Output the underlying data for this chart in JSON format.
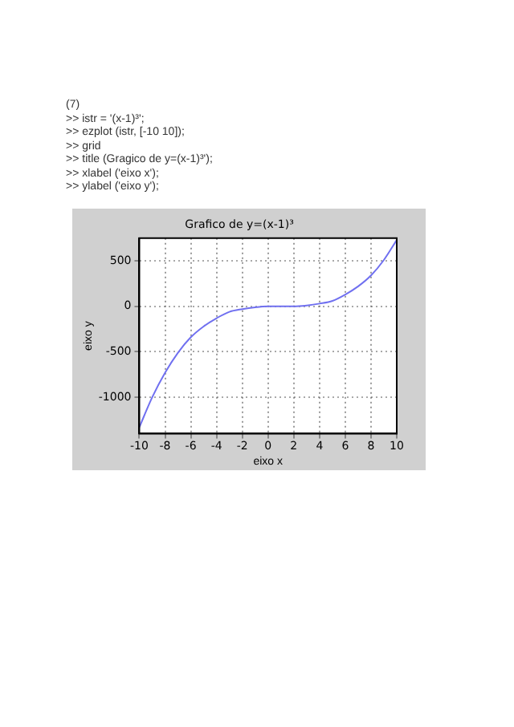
{
  "chart_data": {
    "type": "line",
    "title": "Grafico de y=(x-1)³",
    "xlabel": "eixo x",
    "ylabel": "eixo y",
    "annotations": [
      "(7)",
      ">> istr = '(x-1)³';",
      ">> ezplot (istr, [-10 10]);",
      ">> grid",
      ">> title (Gragico de y=(x-1)³');",
      ">> xlabel ('eixo x');",
      ">> ylabel ('eixo y');"
    ],
    "x": [
      -10,
      -9,
      -8,
      -7,
      -6,
      -5,
      -4,
      -3,
      -2,
      -1,
      0,
      1,
      2,
      3,
      4,
      5,
      6,
      7,
      8,
      9,
      10
    ],
    "series": [
      {
        "color": "#7070f0",
        "values": [
          -1330,
          -1000,
          -730,
          -510,
          -340,
          -220,
          -130,
          -60,
          -30,
          -10,
          0,
          0,
          0,
          10,
          30,
          60,
          130,
          220,
          340,
          510,
          730
        ]
      }
    ],
    "xlim": [
      -10,
      10
    ],
    "xticks": [
      -10,
      -8,
      -6,
      -4,
      -2,
      0,
      2,
      4,
      6,
      8,
      10
    ],
    "ylim": [
      -1400,
      750
    ],
    "yticks": [
      -1000,
      -500,
      0,
      500
    ],
    "grid": true,
    "legend": false,
    "marker": "none",
    "line_style": "solid"
  }
}
